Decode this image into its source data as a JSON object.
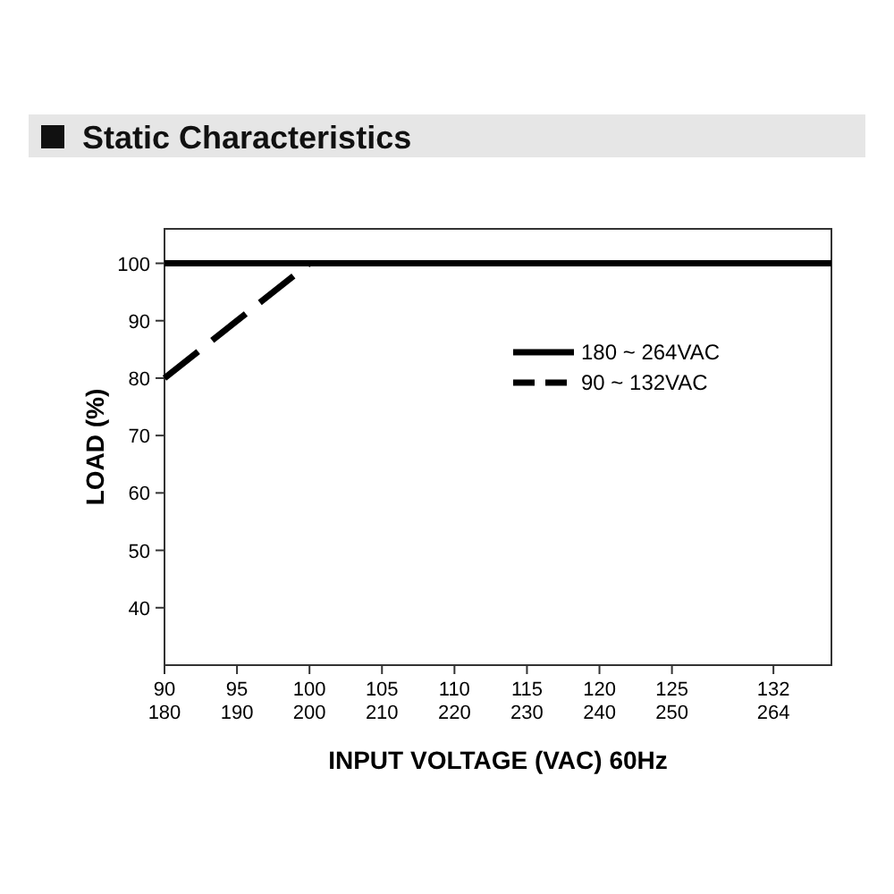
{
  "chart_data": {
    "type": "line",
    "title": "Static Characteristics",
    "xlabel": "INPUT VOLTAGE (VAC) 60Hz",
    "ylabel": "LOAD (%)",
    "xlim": [
      90,
      136
    ],
    "xticks": [
      90,
      95,
      100,
      105,
      110,
      115,
      120,
      125,
      132
    ],
    "x2lim": [
      180,
      272
    ],
    "x2ticks": [
      180,
      190,
      200,
      210,
      220,
      230,
      240,
      250,
      264
    ],
    "ylim": [
      30,
      106
    ],
    "yticks": [
      40,
      50,
      60,
      70,
      80,
      90,
      100
    ],
    "grid": false,
    "legend": "top right",
    "marker": "none",
    "series": [
      {
        "name": "180 ~ 264VAC",
        "color": "#000000",
        "axis": "x2",
        "x": [
          180,
          272
        ],
        "values": [
          100,
          100
        ],
        "line_style": "solid"
      },
      {
        "name": "90 ~ 132VAC",
        "color": "#000000",
        "x": [
          90,
          100
        ],
        "values": [
          80,
          100
        ],
        "line_style": "dashed"
      }
    ]
  }
}
